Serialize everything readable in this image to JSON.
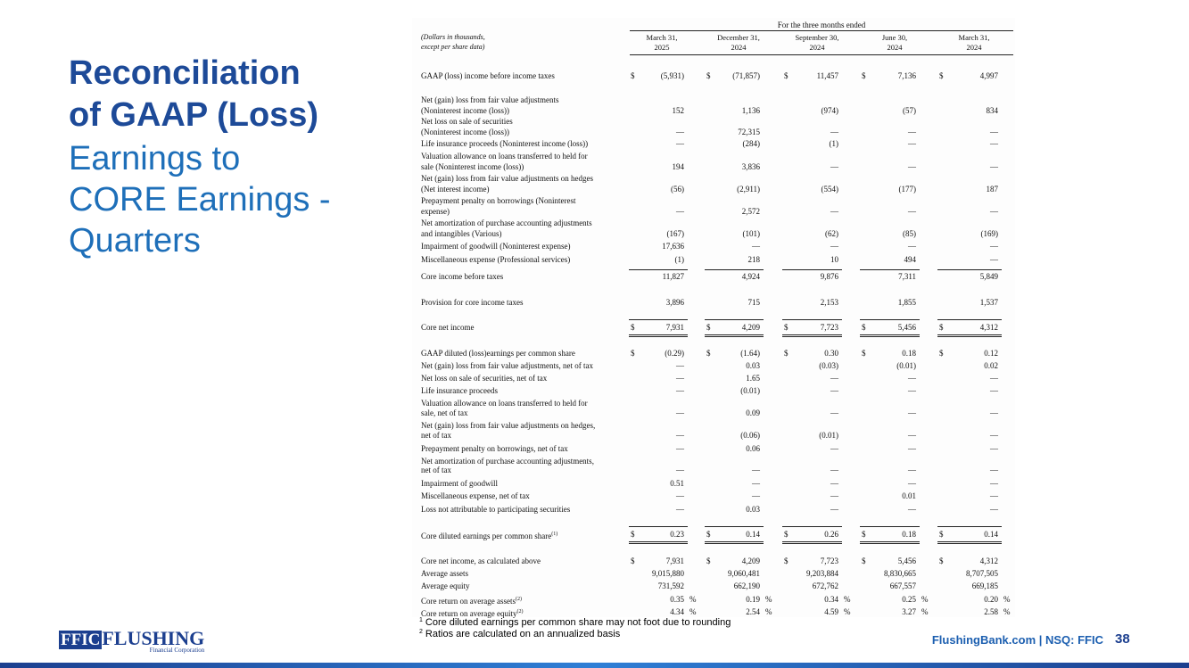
{
  "title_lines": [
    "Reconciliation",
    "of GAAP (Loss)"
  ],
  "subtitle_lines": [
    "Earnings to",
    "CORE Earnings -",
    "Quarters"
  ],
  "table": {
    "period_header": "For the three months ended",
    "unit_note": [
      "(Dollars in thousands,",
      "except per share data)"
    ],
    "columns": [
      {
        "month": "March 31,",
        "year": "2025"
      },
      {
        "month": "December 31,",
        "year": "2024"
      },
      {
        "month": "September 30,",
        "year": "2024"
      },
      {
        "month": "June 30,",
        "year": "2024"
      },
      {
        "month": "March 31,",
        "year": "2024"
      }
    ],
    "rows": [
      {
        "label": [
          "GAAP (loss) income before income taxes"
        ],
        "currency": "$",
        "cells": [
          "(5,931)",
          "(71,857)",
          "11,457",
          "7,136",
          "4,997"
        ]
      },
      {
        "label": [
          "Net (gain) loss from fair value adjustments",
          "(Noninterest income (loss))"
        ],
        "cells": [
          "152",
          "1,136",
          "(974)",
          "(57)",
          "834"
        ]
      },
      {
        "label": [
          "Net loss on sale of securities",
          "(Noninterest income (loss))"
        ],
        "cells": [
          "—",
          "72,315",
          "—",
          "—",
          "—"
        ]
      },
      {
        "label": [
          "Life insurance proceeds (Noninterest income (loss))"
        ],
        "cells": [
          "—",
          "(284)",
          "(1)",
          "—",
          "—"
        ]
      },
      {
        "label": [
          "Valuation allowance on loans transferred to held for",
          "sale (Noninterest income (loss))"
        ],
        "cells": [
          "194",
          "3,836",
          "—",
          "—",
          "—"
        ]
      },
      {
        "label": [
          "Net (gain) loss from fair value adjustments on hedges",
          "(Net interest income)"
        ],
        "cells": [
          "(56)",
          "(2,911)",
          "(554)",
          "(177)",
          "187"
        ]
      },
      {
        "label": [
          "Prepayment penalty on borrowings (Noninterest",
          "expense)"
        ],
        "cells": [
          "—",
          "2,572",
          "—",
          "—",
          "—"
        ]
      },
      {
        "label": [
          "Net amortization of purchase accounting adjustments",
          "and intangibles (Various)"
        ],
        "cells": [
          "(167)",
          "(101)",
          "(62)",
          "(85)",
          "(169)"
        ]
      },
      {
        "label": [
          "Impairment of goodwill (Noninterest expense)"
        ],
        "cells": [
          "17,636",
          "—",
          "—",
          "—",
          "—"
        ]
      },
      {
        "label": [
          "Miscellaneous expense  (Professional services)"
        ],
        "cells": [
          "(1)",
          "218",
          "10",
          "494",
          "—"
        ]
      },
      {
        "label": [
          "Core income before taxes"
        ],
        "cells": [
          "11,827",
          "4,924",
          "9,876",
          "7,311",
          "5,849"
        ]
      },
      {
        "label": [
          "Provision for core income taxes"
        ],
        "cells": [
          "3,896",
          "715",
          "2,153",
          "1,855",
          "1,537"
        ]
      },
      {
        "label": [
          "Core net income"
        ],
        "currency": "$",
        "cells": [
          "7,931",
          "4,209",
          "7,723",
          "5,456",
          "4,312"
        ]
      },
      {
        "label": [
          "GAAP diluted (loss)earnings per common share"
        ],
        "currency": "$",
        "cells": [
          "(0.29)",
          "(1.64)",
          "0.30",
          "0.18",
          "0.12"
        ]
      },
      {
        "label": [
          "Net (gain) loss from fair value adjustments, net of tax"
        ],
        "cells": [
          "—",
          "0.03",
          "(0.03)",
          "(0.01)",
          "0.02"
        ]
      },
      {
        "label": [
          "Net loss on sale of securities, net of tax"
        ],
        "cells": [
          "—",
          "1.65",
          "—",
          "—",
          "—"
        ]
      },
      {
        "label": [
          "Life insurance proceeds"
        ],
        "cells": [
          "—",
          "(0.01)",
          "—",
          "—",
          "—"
        ]
      },
      {
        "label": [
          "Valuation allowance on loans transferred to held for",
          "sale, net of tax"
        ],
        "cells": [
          "—",
          "0.09",
          "—",
          "—",
          "—"
        ]
      },
      {
        "label": [
          "Net (gain) loss from fair value adjustments on hedges,",
          "net of tax"
        ],
        "cells": [
          "—",
          "(0.06)",
          "(0.01)",
          "—",
          "—"
        ]
      },
      {
        "label": [
          "Prepayment penalty on borrowings, net of tax"
        ],
        "cells": [
          "—",
          "0.06",
          "—",
          "—",
          "—"
        ]
      },
      {
        "label": [
          "Net amortization of purchase accounting adjustments,",
          "net of tax"
        ],
        "cells": [
          "—",
          "—",
          "—",
          "—",
          "—"
        ]
      },
      {
        "label": [
          "Impairment of goodwill"
        ],
        "cells": [
          "0.51",
          "—",
          "—",
          "—",
          "—"
        ]
      },
      {
        "label": [
          "Miscellaneous expense, net of tax"
        ],
        "cells": [
          "—",
          "—",
          "—",
          "0.01",
          "—"
        ]
      },
      {
        "label": [
          "Loss not attributable to participating securities"
        ],
        "cells": [
          "—",
          "0.03",
          "—",
          "—",
          "—"
        ]
      },
      {
        "label": [
          "Core diluted earnings per common share"
        ],
        "note": "(1)",
        "currency": "$",
        "cells": [
          "0.23",
          "0.14",
          "0.26",
          "0.18",
          "0.14"
        ]
      },
      {
        "label": [
          "Core net income, as calculated above"
        ],
        "currency": "$",
        "cells": [
          "7,931",
          "4,209",
          "7,723",
          "5,456",
          "4,312"
        ]
      },
      {
        "label": [
          "Average assets"
        ],
        "cells": [
          "9,015,880",
          "9,060,481",
          "9,203,884",
          "8,830,665",
          "8,707,505"
        ]
      },
      {
        "label": [
          "Average equity"
        ],
        "cells": [
          "731,592",
          "662,190",
          "672,762",
          "667,557",
          "669,185"
        ]
      },
      {
        "label": [
          "Core return on average assets"
        ],
        "note": "(2)",
        "unit": "%",
        "cells": [
          "0.35",
          "0.19",
          "0.34",
          "0.25",
          "0.20"
        ]
      },
      {
        "label": [
          "Core return on average equity"
        ],
        "note": "(2)",
        "unit": "%",
        "cells": [
          "4.34",
          "2.54",
          "4.59",
          "3.27",
          "2.58"
        ]
      }
    ]
  },
  "footnotes": [
    {
      "mark": "1",
      "text": "Core diluted earnings per common share may not foot due to rounding"
    },
    {
      "mark": "2",
      "text": "Ratios are calculated on an annualized basis"
    }
  ],
  "logo": {
    "mark": "FFIC",
    "name": "FLUSHING",
    "tagline": "Financial Corporation"
  },
  "footer": {
    "site": "FlushingBank.com | NSQ: FFIC",
    "page": "38"
  }
}
